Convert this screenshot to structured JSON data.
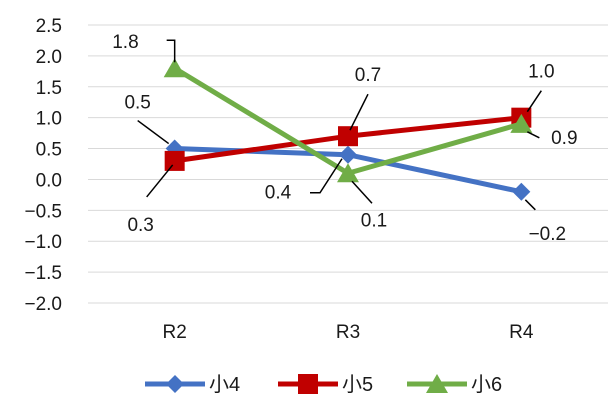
{
  "chart_data": {
    "type": "line",
    "categories": [
      "R2",
      "R3",
      "R4"
    ],
    "series": [
      {
        "name": "小4",
        "values": [
          0.5,
          0.4,
          -0.2
        ],
        "labels": [
          "0.5",
          "0.4",
          "−0.2"
        ],
        "color": "#4472C4",
        "marker": "diamond"
      },
      {
        "name": "小5",
        "values": [
          0.3,
          0.7,
          1.0
        ],
        "labels": [
          "0.3",
          "0.7",
          "1.0"
        ],
        "color": "#C00000",
        "marker": "square"
      },
      {
        "name": "小6",
        "values": [
          1.8,
          0.1,
          0.9
        ],
        "labels": [
          "1.8",
          "0.1",
          "0.9"
        ],
        "color": "#70AD47",
        "marker": "triangle"
      }
    ],
    "yticks": [
      "2.5",
      "2.0",
      "1.5",
      "1.0",
      "0.5",
      "0.0",
      "−0.5",
      "−1.0",
      "−1.5",
      "−2.0"
    ],
    "ylim": [
      -2.0,
      2.5
    ],
    "grid": true,
    "legend": "bottom"
  }
}
